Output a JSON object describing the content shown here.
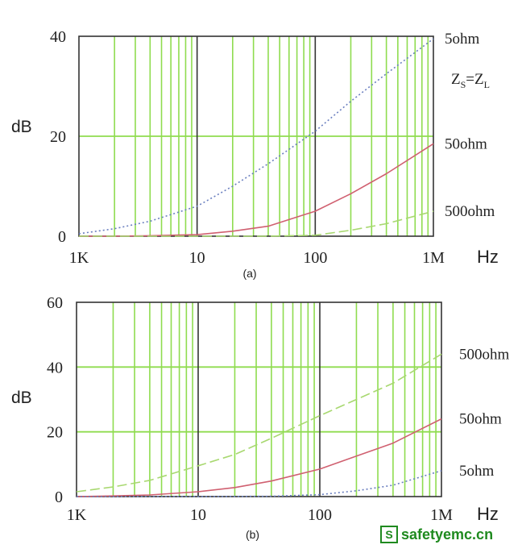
{
  "chart_data": [
    {
      "type": "line",
      "caption": "(a)",
      "ylabel": "dB",
      "xlabel": "Hz",
      "x_scale": "log",
      "x_ticks": [
        "1K",
        "10",
        "100",
        "1M"
      ],
      "x_tick_values": [
        1000,
        10000,
        100000,
        1000000
      ],
      "y_ticks": [
        "0",
        "20",
        "40"
      ],
      "ylim": [
        0,
        40
      ],
      "xlim": [
        1000,
        1000000
      ],
      "grid": true,
      "annotation": "ZS=ZL",
      "series": [
        {
          "name": "5ohm",
          "color": "#6a7fbf",
          "style": "dotted",
          "x": [
            1000,
            2000,
            4000,
            10000,
            20000,
            40000,
            100000,
            200000,
            400000,
            1000000
          ],
          "y": [
            0.5,
            1.5,
            3,
            6,
            10,
            14.5,
            21,
            27,
            32.5,
            39.5
          ]
        },
        {
          "name": "50ohm",
          "color": "#d06070",
          "style": "solid",
          "x": [
            1000,
            2000,
            4000,
            10000,
            20000,
            40000,
            100000,
            200000,
            400000,
            1000000
          ],
          "y": [
            0,
            0,
            0.1,
            0.3,
            1,
            2,
            5,
            8.5,
            12.5,
            18.5
          ]
        },
        {
          "name": "500ohm",
          "color": "#a8d870",
          "style": "dashed",
          "x": [
            1000,
            10000,
            40000,
            100000,
            200000,
            400000,
            1000000
          ],
          "y": [
            0,
            0,
            0,
            0.2,
            1.2,
            2.5,
            5
          ]
        }
      ]
    },
    {
      "type": "line",
      "caption": "(b)",
      "ylabel": "dB",
      "xlabel": "Hz",
      "x_scale": "log",
      "x_ticks": [
        "1K",
        "10",
        "100",
        "1M"
      ],
      "x_tick_values": [
        1000,
        10000,
        100000,
        1000000
      ],
      "y_ticks": [
        "0",
        "20",
        "40",
        "60"
      ],
      "ylim": [
        0,
        60
      ],
      "xlim": [
        1000,
        1000000
      ],
      "grid": true,
      "series": [
        {
          "name": "500ohm",
          "color": "#a8d870",
          "style": "dashed",
          "x": [
            1000,
            2000,
            4000,
            10000,
            20000,
            40000,
            100000,
            200000,
            400000,
            1000000
          ],
          "y": [
            1.5,
            3,
            5,
            9.5,
            13,
            18,
            25,
            30,
            35,
            44
          ]
        },
        {
          "name": "50ohm",
          "color": "#d06070",
          "style": "solid",
          "x": [
            1000,
            2000,
            4000,
            10000,
            20000,
            40000,
            100000,
            200000,
            400000,
            1000000
          ],
          "y": [
            0,
            0.2,
            0.5,
            1.5,
            2.8,
            4.8,
            8.5,
            12.5,
            16.5,
            24
          ]
        },
        {
          "name": "5ohm",
          "color": "#6a7fbf",
          "style": "dotted",
          "x": [
            1000,
            10000,
            40000,
            100000,
            200000,
            400000,
            1000000
          ],
          "y": [
            0,
            0,
            0.1,
            0.6,
            1.8,
            3.5,
            8
          ]
        }
      ]
    }
  ],
  "watermark": {
    "icon": "S",
    "text": "safetyemc.cn"
  }
}
